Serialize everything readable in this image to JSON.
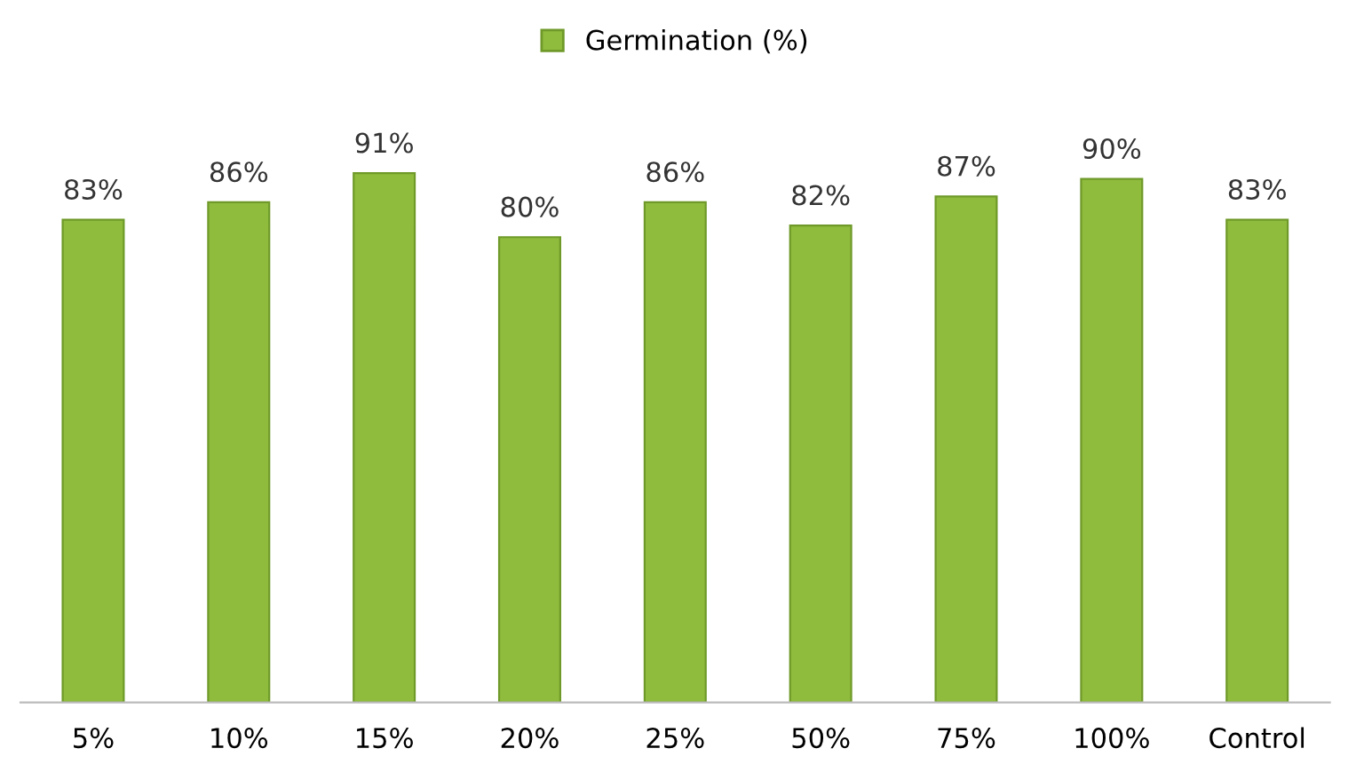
{
  "chart_data": {
    "type": "bar",
    "categories": [
      "5%",
      "10%",
      "15%",
      "20%",
      "25%",
      "50%",
      "75%",
      "100%",
      "Control"
    ],
    "series": [
      {
        "name": "Germination (%)",
        "color": "#8fbc3c",
        "values": [
          83,
          86,
          91,
          80,
          86,
          82,
          87,
          90,
          83
        ],
        "value_labels": [
          "83%",
          "86%",
          "91%",
          "80%",
          "86%",
          "82%",
          "87%",
          "90%",
          "83%"
        ]
      }
    ],
    "tick_labels": "x",
    "legend": "top",
    "grid": false
  }
}
